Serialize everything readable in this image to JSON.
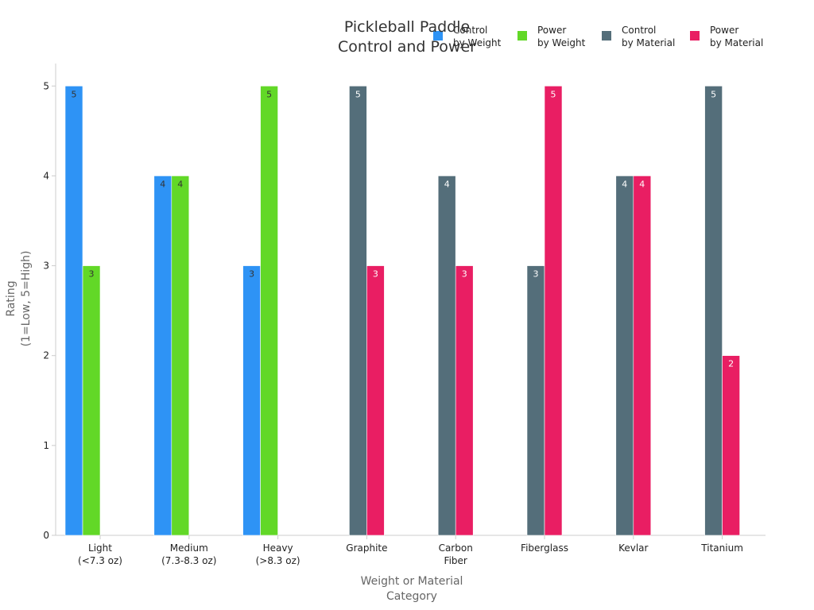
{
  "chart_data": {
    "type": "bar",
    "title": [
      "Pickleball Paddle",
      "Control and Power"
    ],
    "xlabel": [
      "Weight or Material",
      "Category"
    ],
    "ylabel": [
      "Rating",
      "(1=Low, 5=High)"
    ],
    "ylim": [
      0,
      5.25
    ],
    "yticks": [
      0,
      1,
      2,
      3,
      4,
      5
    ],
    "grid": false,
    "legend_position": "top-right",
    "categories": [
      [
        "Light",
        "(<7.3 oz)"
      ],
      [
        "Medium",
        "(7.3-8.3 oz)"
      ],
      [
        "Heavy",
        "(>8.3 oz)"
      ],
      [
        "Graphite"
      ],
      [
        "Carbon",
        "Fiber"
      ],
      [
        "Fiberglass"
      ],
      [
        "Kevlar"
      ],
      [
        "Titanium"
      ]
    ],
    "series": [
      {
        "name": [
          "Control",
          "by Weight"
        ],
        "color": "#2e93f5",
        "label_color": "#333333",
        "values": [
          5,
          4,
          3,
          null,
          null,
          null,
          null,
          null
        ]
      },
      {
        "name": [
          "Power",
          "by Weight"
        ],
        "color": "#62d827",
        "label_color": "#333333",
        "values": [
          3,
          4,
          5,
          null,
          null,
          null,
          null,
          null
        ]
      },
      {
        "name": [
          "Control",
          "by Material"
        ],
        "color": "#546e7a",
        "label_color": "#ffffff",
        "values": [
          null,
          null,
          null,
          5,
          4,
          3,
          4,
          5
        ]
      },
      {
        "name": [
          "Power",
          "by Material"
        ],
        "color": "#e91e63",
        "label_color": "#ffffff",
        "values": [
          null,
          null,
          null,
          3,
          3,
          5,
          4,
          2
        ]
      }
    ]
  }
}
